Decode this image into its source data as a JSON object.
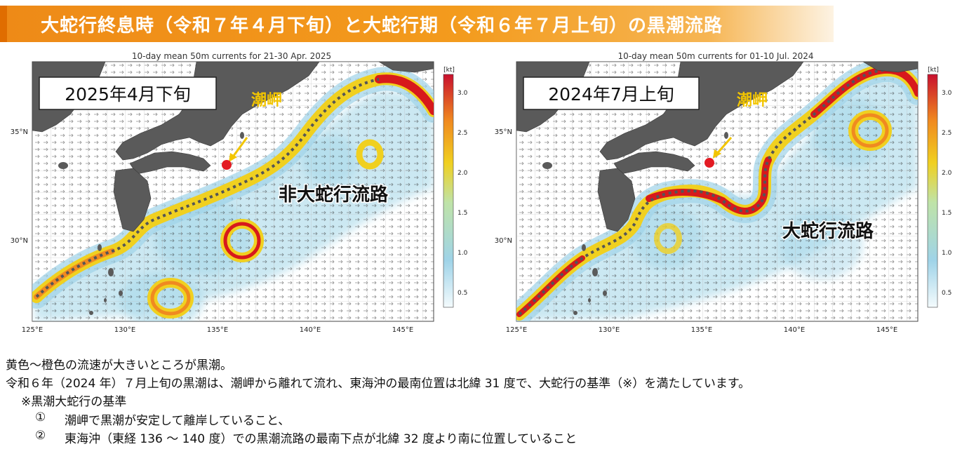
{
  "title": "大蛇行終息時（令和７年４月下旬）と大蛇行期（令和６年７月上旬）の黒潮流路",
  "colors": {
    "title_bg": "#f39b1d",
    "land": "#5a5a5a",
    "marker": "#e31b23",
    "arrow_label": "#f2c500",
    "current_strong": "#d7191c",
    "current_mid": "#f0d020",
    "current_weak": "#9fd3e8"
  },
  "panels": [
    {
      "chart_title": "10-day mean 50m currents for 21-30 Apr. 2025",
      "label": "2025年4月下旬",
      "place_label": "潮岬",
      "path_label": "非大蛇行流路",
      "unit": "[kt]",
      "x_ticks": [
        "125°E",
        "130°E",
        "135°E",
        "140°E",
        "145°E"
      ],
      "y_ticks": [
        "35°N",
        "30°N"
      ],
      "colorbar_ticks": [
        "3.0",
        "2.5",
        "2.0",
        "1.5",
        "1.0",
        "0.5"
      ]
    },
    {
      "chart_title": "10-day mean 50m currents for 01-10 Jul. 2024",
      "label": "2024年7月上旬",
      "place_label": "潮岬",
      "path_label": "大蛇行流路",
      "unit": "[kt]",
      "x_ticks": [
        "125°E",
        "130°E",
        "135°E",
        "140°E",
        "145°E"
      ],
      "y_ticks": [
        "35°N",
        "30°N"
      ],
      "colorbar_ticks": [
        "3.0",
        "2.5",
        "2.0",
        "1.5",
        "1.0",
        "0.5"
      ]
    }
  ],
  "notes": {
    "line1": "黄色～橙色の流速が大きいところが黒潮。",
    "line2": "令和６年（2024 年）７月上旬の黒潮は、潮岬から離れて流れ、東海沖の最南位置は北緯 31 度で、大蛇行の基準（※）を満たしています。",
    "line3": "※黒潮大蛇行の基準",
    "item1_num": "①",
    "item1": "潮岬で黒潮が安定して離岸していること、",
    "item2_num": "②",
    "item2": "東海沖（東経 136 ～ 140 度）での黒潮流路の最南下点が北緯 32 度より南に位置していること"
  }
}
